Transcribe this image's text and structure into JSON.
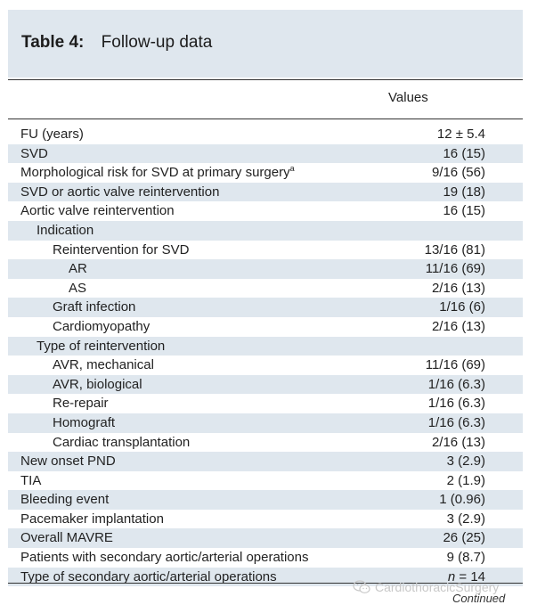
{
  "table": {
    "label": "Table 4:",
    "caption": "Follow-up data",
    "column_header": "Values",
    "rows": [
      {
        "label": "FU (years)",
        "value": "12 ± 5.4",
        "indent": 0
      },
      {
        "label": "SVD",
        "value": "16 (15)",
        "indent": 0
      },
      {
        "label": "Morphological risk for SVD at primary surgery",
        "sup": "a",
        "value": "9/16 (56)",
        "indent": 0
      },
      {
        "label": "SVD or aortic valve reintervention",
        "value": "19 (18)",
        "indent": 0
      },
      {
        "label": "Aortic valve reintervention",
        "value": "16 (15)",
        "indent": 0
      },
      {
        "label": "Indication",
        "value": "",
        "indent": 1
      },
      {
        "label": "Reintervention for SVD",
        "value": "13/16 (81)",
        "indent": 2
      },
      {
        "label": "AR",
        "value": "11/16 (69)",
        "indent": 3
      },
      {
        "label": "AS",
        "value": "2/16 (13)",
        "indent": 3
      },
      {
        "label": "Graft infection",
        "value": "1/16 (6)",
        "indent": 2
      },
      {
        "label": "Cardiomyopathy",
        "value": "2/16 (13)",
        "indent": 2
      },
      {
        "label": "Type of reintervention",
        "value": "",
        "indent": 1
      },
      {
        "label": "AVR, mechanical",
        "value": "11/16 (69)",
        "indent": 2
      },
      {
        "label": "AVR, biological",
        "value": "1/16 (6.3)",
        "indent": 2
      },
      {
        "label": "Re-repair",
        "value": "1/16 (6.3)",
        "indent": 2
      },
      {
        "label": "Homograft",
        "value": "1/16 (6.3)",
        "indent": 2
      },
      {
        "label": "Cardiac transplantation",
        "value": "2/16 (13)",
        "indent": 2
      },
      {
        "label": "New onset PND",
        "value": "3 (2.9)",
        "indent": 0
      },
      {
        "label": "TIA",
        "value": "2 (1.9)",
        "indent": 0
      },
      {
        "label": "Bleeding event",
        "value": "1 (0.96)",
        "indent": 0
      },
      {
        "label": "Pacemaker implantation",
        "value": "3 (2.9)",
        "indent": 0
      },
      {
        "label": "Overall MAVRE",
        "value": "26 (25)",
        "indent": 0
      },
      {
        "label": "Patients with secondary aortic/arterial operations",
        "value": "9 (8.7)",
        "indent": 0
      },
      {
        "label": "Type of secondary aortic/arterial operations",
        "value_italic": "n",
        "value": " = 14",
        "indent": 0
      }
    ]
  },
  "footer": {
    "continued": "Continued",
    "watermark": "CardiothoracicSurgery",
    "watermark_icon": "wechat-icon"
  }
}
